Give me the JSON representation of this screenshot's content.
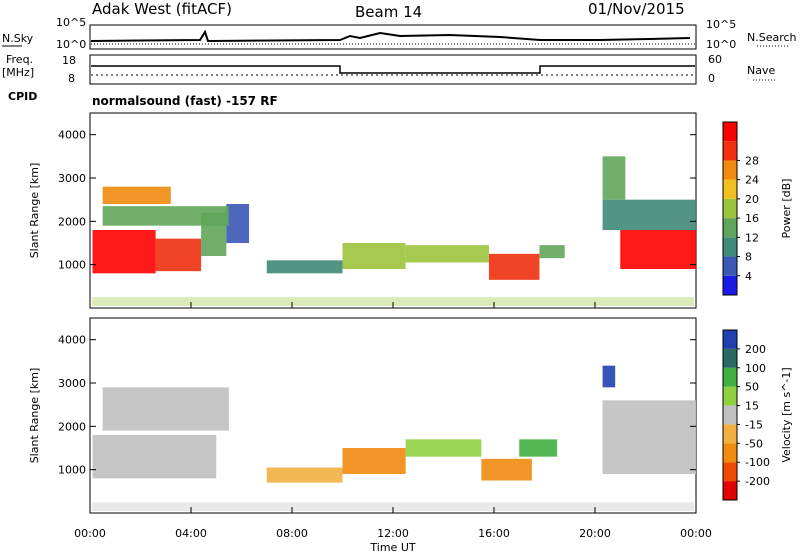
{
  "header": {
    "station": "Adak West (fitACF)",
    "beam": "Beam 14",
    "date": "01/Nov/2015"
  },
  "panels": {
    "nsky": {
      "left_label": "N.Sky",
      "right_label": "N.Search",
      "left_ticks": [
        "10^5",
        "10^0"
      ],
      "right_ticks": [
        "10^5",
        "10^0"
      ]
    },
    "freq": {
      "left_label_1": "Freq.",
      "left_label_2": "[MHz]",
      "right_label": "Nave",
      "left_ticks": [
        "18",
        "8"
      ],
      "right_ticks": [
        "60",
        "0"
      ]
    },
    "cpid": {
      "label": "CPID",
      "text": "normalsound (fast) -157 RF"
    }
  },
  "colors": {
    "power": [
      "#1a1ae6",
      "#3a58b5",
      "#3f8a78",
      "#5fa65a",
      "#9cc43d",
      "#f0c020",
      "#f08a10",
      "#f03010",
      "#ff0000"
    ],
    "velocity": [
      "#e00000",
      "#f04a00",
      "#f08a10",
      "#f2b040",
      "#c0c0c0",
      "#8fd040",
      "#40b040",
      "#2a6a60",
      "#2040b0"
    ]
  },
  "chart_data": [
    {
      "type": "heatmap",
      "title": "Power",
      "ylabel": "Slant Range [km]",
      "ylim": [
        0,
        4500
      ],
      "yticks": [
        "1000",
        "2000",
        "3000",
        "4000"
      ],
      "xlim": [
        0,
        24
      ],
      "colorbar": {
        "label": "Power [dB]",
        "ticks": [
          "4",
          "8",
          "12",
          "16",
          "20",
          "24",
          "28"
        ]
      },
      "regions": [
        {
          "x": [
            0.1,
            2.6
          ],
          "y": [
            800,
            1800
          ],
          "level": 8
        },
        {
          "x": [
            2.6,
            4.4
          ],
          "y": [
            850,
            1600
          ],
          "level": 7
        },
        {
          "x": [
            4.4,
            5.4
          ],
          "y": [
            1200,
            2200
          ],
          "level": 3
        },
        {
          "x": [
            5.4,
            6.3
          ],
          "y": [
            1500,
            2400
          ],
          "level": 1
        },
        {
          "x": [
            0.5,
            3.2
          ],
          "y": [
            2400,
            2800
          ],
          "level": 6
        },
        {
          "x": [
            0.5,
            5.5
          ],
          "y": [
            1900,
            2350
          ],
          "level": 3
        },
        {
          "x": [
            7.0,
            10.0
          ],
          "y": [
            800,
            1100
          ],
          "level": 2
        },
        {
          "x": [
            10.0,
            12.5
          ],
          "y": [
            900,
            1500
          ],
          "level": 4
        },
        {
          "x": [
            12.5,
            15.8
          ],
          "y": [
            1050,
            1450
          ],
          "level": 4
        },
        {
          "x": [
            15.8,
            17.8
          ],
          "y": [
            650,
            1250
          ],
          "level": 7
        },
        {
          "x": [
            17.8,
            18.8
          ],
          "y": [
            1150,
            1450
          ],
          "level": 3
        },
        {
          "x": [
            20.3,
            24.0
          ],
          "y": [
            1800,
            2500
          ],
          "level": 2
        },
        {
          "x": [
            21.0,
            24.0
          ],
          "y": [
            900,
            1800
          ],
          "level": 8
        },
        {
          "x": [
            20.3,
            21.2
          ],
          "y": [
            2500,
            3500
          ],
          "level": 3
        }
      ]
    },
    {
      "type": "heatmap",
      "title": "Velocity",
      "ylabel": "Slant Range [km]",
      "ylim": [
        0,
        4500
      ],
      "yticks": [
        "1000",
        "2000",
        "3000",
        "4000"
      ],
      "xlim": [
        0,
        24
      ],
      "xticks": [
        "00:00",
        "04:00",
        "08:00",
        "12:00",
        "16:00",
        "20:00",
        "00:00"
      ],
      "xlabel": "Time UT",
      "colorbar": {
        "label": "Velocity [m s^-1]",
        "ticks": [
          "200",
          "100",
          "50",
          "15",
          "-15",
          "-50",
          "-100",
          "-200"
        ]
      },
      "regions": [
        {
          "x": [
            0.1,
            5.0
          ],
          "y": [
            800,
            1800
          ],
          "level": 4
        },
        {
          "x": [
            0.5,
            5.5
          ],
          "y": [
            1900,
            2900
          ],
          "level": 4
        },
        {
          "x": [
            7.0,
            10.0
          ],
          "y": [
            700,
            1050
          ],
          "level": 3
        },
        {
          "x": [
            10.0,
            12.5
          ],
          "y": [
            900,
            1500
          ],
          "level": 2
        },
        {
          "x": [
            12.5,
            15.5
          ],
          "y": [
            1300,
            1700
          ],
          "level": 5
        },
        {
          "x": [
            15.5,
            17.5
          ],
          "y": [
            750,
            1250
          ],
          "level": 2
        },
        {
          "x": [
            17.0,
            18.5
          ],
          "y": [
            1300,
            1700
          ],
          "level": 6
        },
        {
          "x": [
            20.3,
            24.0
          ],
          "y": [
            900,
            2600
          ],
          "level": 4
        },
        {
          "x": [
            20.3,
            20.8
          ],
          "y": [
            2900,
            3400
          ],
          "level": 8
        }
      ]
    }
  ]
}
